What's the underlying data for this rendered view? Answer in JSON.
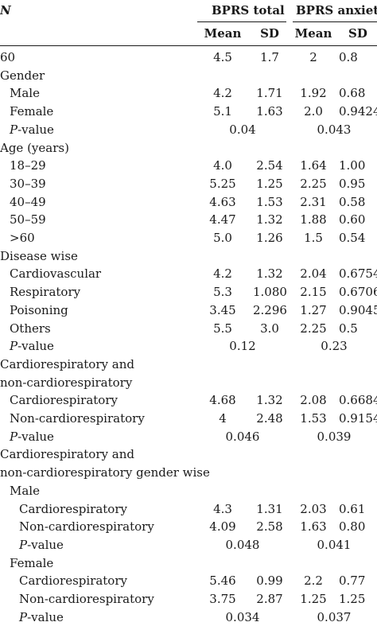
{
  "header": {
    "n_label": "N",
    "group1": "BPRS total",
    "group2": "BPRS anxiety",
    "mean": "Mean",
    "sd": "SD"
  },
  "rows": [
    {
      "label": "60",
      "indent": 0,
      "v": [
        "4.5",
        "1.7",
        "2",
        "0.8"
      ]
    },
    {
      "label": "Gender",
      "indent": 0,
      "v": []
    },
    {
      "label": "Male",
      "indent": 1,
      "v": [
        "4.2",
        "1.71",
        "1.92",
        "0.68"
      ]
    },
    {
      "label": "Female",
      "indent": 1,
      "v": [
        "5.1",
        "1.63",
        "2.0",
        "0.9424"
      ]
    },
    {
      "label": "P-value",
      "indent": 1,
      "p": [
        "0.04",
        "0.043"
      ]
    },
    {
      "label": "Age (years)",
      "indent": 0,
      "v": []
    },
    {
      "label": "18–29",
      "indent": 1,
      "v": [
        "4.0",
        "2.54",
        "1.64",
        "1.00"
      ]
    },
    {
      "label": "30–39",
      "indent": 1,
      "v": [
        "5.25",
        "1.25",
        "2.25",
        "0.95"
      ]
    },
    {
      "label": "40–49",
      "indent": 1,
      "v": [
        "4.63",
        "1.53",
        "2.31",
        "0.58"
      ]
    },
    {
      "label": "50–59",
      "indent": 1,
      "v": [
        "4.47",
        "1.32",
        "1.88",
        "0.60"
      ]
    },
    {
      "label": ">60",
      "indent": 1,
      "v": [
        "5.0",
        "1.26",
        "1.5",
        "0.54"
      ]
    },
    {
      "label": "Disease wise",
      "indent": 0,
      "v": []
    },
    {
      "label": "Cardiovascular",
      "indent": 1,
      "v": [
        "4.2",
        "1.32",
        "2.04",
        "0.6754"
      ]
    },
    {
      "label": "Respiratory",
      "indent": 1,
      "v": [
        "5.3",
        "1.080",
        "2.15",
        "0.6706"
      ]
    },
    {
      "label": "Poisoning",
      "indent": 1,
      "v": [
        "3.45",
        "2.296",
        "1.27",
        "0.9045"
      ]
    },
    {
      "label": "Others",
      "indent": 1,
      "v": [
        "5.5",
        "3.0",
        "2.25",
        "0.5"
      ]
    },
    {
      "label": "P-value",
      "indent": 1,
      "p": [
        "0.12",
        "0.23"
      ]
    },
    {
      "label": "Cardiorespiratory and",
      "indent": 0,
      "v": []
    },
    {
      "label": "non-cardiorespiratory",
      "indent": 0,
      "v": []
    },
    {
      "label": "Cardiorespiratory",
      "indent": 1,
      "v": [
        "4.68",
        "1.32",
        "2.08",
        "0.6684"
      ]
    },
    {
      "label": "Non-cardiorespiratory",
      "indent": 1,
      "v": [
        "4",
        "2.48",
        "1.53",
        "0.9154"
      ]
    },
    {
      "label": "P-value",
      "indent": 1,
      "p": [
        "0.046",
        "0.039"
      ]
    },
    {
      "label": "Cardiorespiratory and",
      "indent": 0,
      "v": []
    },
    {
      "label": "non-cardiorespiratory gender wise",
      "indent": 0,
      "v": []
    },
    {
      "label": "Male",
      "indent": 1,
      "v": []
    },
    {
      "label": "Cardiorespiratory",
      "indent": 2,
      "v": [
        "4.3",
        "1.31",
        "2.03",
        "0.61"
      ]
    },
    {
      "label": "Non-cardiorespiratory",
      "indent": 2,
      "v": [
        "4.09",
        "2.58",
        "1.63",
        "0.80"
      ]
    },
    {
      "label": "P-value",
      "indent": 2,
      "p": [
        "0.048",
        "0.041"
      ]
    },
    {
      "label": "Female",
      "indent": 1,
      "v": []
    },
    {
      "label": "Cardiorespiratory",
      "indent": 2,
      "v": [
        "5.46",
        "0.99",
        "2.2",
        "0.77"
      ]
    },
    {
      "label": "Non-cardiorespiratory",
      "indent": 2,
      "v": [
        "3.75",
        "2.87",
        "1.25",
        "1.25"
      ]
    },
    {
      "label": "P-value",
      "indent": 2,
      "p": [
        "0.034",
        "0.037"
      ]
    }
  ]
}
